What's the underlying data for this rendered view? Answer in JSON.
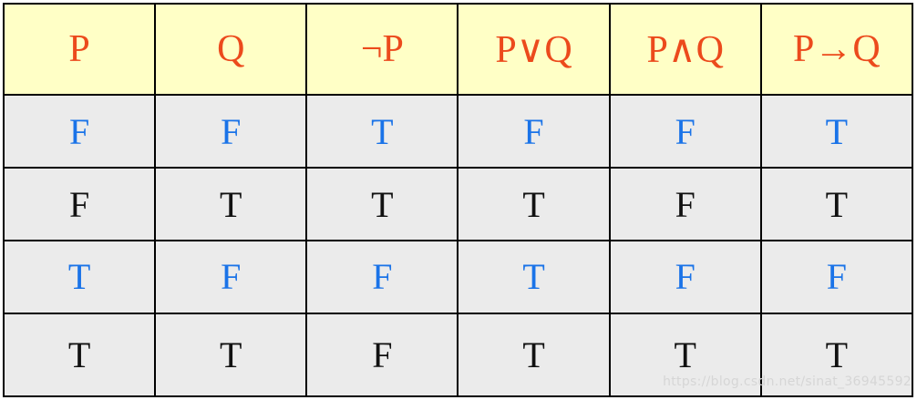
{
  "table": {
    "headers": [
      "P",
      "Q",
      "¬P",
      "P∨Q",
      "P∧Q",
      "P→Q"
    ],
    "rows": [
      [
        "F",
        "F",
        "T",
        "F",
        "F",
        "T"
      ],
      [
        "F",
        "T",
        "T",
        "T",
        "F",
        "T"
      ],
      [
        "T",
        "F",
        "F",
        "T",
        "F",
        "F"
      ],
      [
        "T",
        "T",
        "F",
        "T",
        "T",
        "T"
      ]
    ]
  },
  "colors": {
    "header_bg": "#ffffc6",
    "header_text": "#ec4a1c",
    "body_bg": "#ebebeb",
    "blue_text": "#1a73e8",
    "black_text": "#111111"
  },
  "watermark": "https://blog.csdn.net/sinat_36945592"
}
